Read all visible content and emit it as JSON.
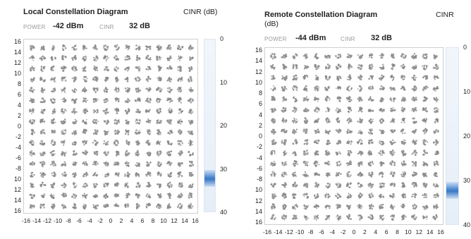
{
  "panels": {
    "local": {
      "title": "Local Constellation Diagram",
      "cinr_heading": "CINR (dB)",
      "power_label": "POWER",
      "power_value": "-42 dBm",
      "cinr_label": "CINR",
      "cinr_value": "32 dB",
      "scale_ticks": [
        "0",
        "10",
        "20",
        "30",
        "40"
      ]
    },
    "remote": {
      "title": "Remote Constellation Diagram",
      "title_wrap": "(dB)",
      "cinr_heading": "CINR",
      "power_label": "POWER",
      "power_value": "-44 dBm",
      "cinr_label": "CINR",
      "cinr_value": "32 dB",
      "scale_ticks": [
        "0",
        "10",
        "20",
        "30",
        "40"
      ]
    }
  },
  "chart_data": [
    {
      "type": "scatter",
      "title": "Local Constellation Diagram",
      "modulation_grid": "16x16",
      "y_tick_labels": [
        "16",
        "14",
        "12",
        "10",
        "8",
        "6",
        "4",
        "2",
        "0",
        "-2",
        "-4",
        "-6",
        "-8",
        "10",
        "12",
        "14",
        "16"
      ],
      "x_tick_labels": [
        "-16",
        "-14",
        "-12",
        "-10",
        "-8",
        "-6",
        "-4",
        "-2",
        "0",
        "2",
        "4",
        "6",
        "8",
        "10",
        "12",
        "14",
        "16"
      ],
      "points_i": [
        -15,
        -13,
        -11,
        -9,
        -7,
        -5,
        -3,
        -1,
        1,
        3,
        5,
        7,
        9,
        11,
        13,
        15
      ],
      "points_q": [
        -15,
        -13,
        -11,
        -9,
        -7,
        -5,
        -3,
        -1,
        1,
        3,
        5,
        7,
        9,
        11,
        13,
        15
      ],
      "xlim": [
        -16,
        16
      ],
      "ylim": [
        -16,
        16
      ],
      "cinr_scale": {
        "min": 0,
        "max": 40,
        "value": 32
      }
    },
    {
      "type": "scatter",
      "title": "Remote Constellation Diagram",
      "modulation_grid": "16x16",
      "y_tick_labels": [
        "16",
        "14",
        "12",
        "10",
        "8",
        "6",
        "4",
        "2",
        "0",
        "-2",
        "-4",
        "-6",
        "-8",
        "10",
        "12",
        "14",
        "16"
      ],
      "x_tick_labels": [
        "-16",
        "-14",
        "-12",
        "-10",
        "-8",
        "-6",
        "-4",
        "-2",
        "0",
        "2",
        "4",
        "6",
        "8",
        "10",
        "12",
        "14",
        "16"
      ],
      "points_i": [
        -15,
        -13,
        -11,
        -9,
        -7,
        -5,
        -3,
        -1,
        1,
        3,
        5,
        7,
        9,
        11,
        13,
        15
      ],
      "points_q": [
        -15,
        -13,
        -11,
        -9,
        -7,
        -5,
        -3,
        -1,
        1,
        3,
        5,
        7,
        9,
        11,
        13,
        15
      ],
      "xlim": [
        -16,
        16
      ],
      "ylim": [
        -16,
        16
      ],
      "cinr_scale": {
        "min": 0,
        "max": 40,
        "value": 32
      }
    }
  ],
  "colors": {
    "constellation_point": "#8a8a8a",
    "scale_marker": "#3a78c6",
    "plot_border": "#cfcfcf"
  }
}
